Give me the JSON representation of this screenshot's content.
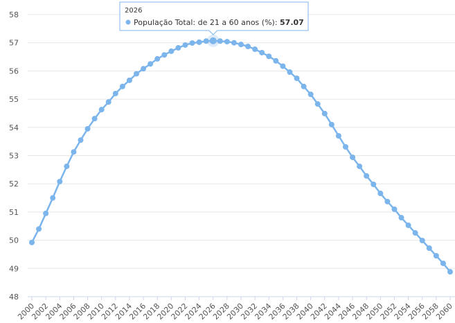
{
  "chart_data": {
    "type": "line",
    "x": [
      2000,
      2001,
      2002,
      2003,
      2004,
      2005,
      2006,
      2007,
      2008,
      2009,
      2010,
      2011,
      2012,
      2013,
      2014,
      2015,
      2016,
      2017,
      2018,
      2019,
      2020,
      2021,
      2022,
      2023,
      2024,
      2025,
      2026,
      2027,
      2028,
      2029,
      2030,
      2031,
      2032,
      2033,
      2034,
      2035,
      2036,
      2037,
      2038,
      2039,
      2040,
      2041,
      2042,
      2043,
      2044,
      2045,
      2046,
      2047,
      2048,
      2049,
      2050,
      2051,
      2052,
      2053,
      2054,
      2055,
      2056,
      2057,
      2058,
      2059,
      2060
    ],
    "series": [
      {
        "name": "População Total: de 21 a 60 anos (%)",
        "color": "#7cb5ec",
        "values": [
          49.92,
          50.4,
          50.95,
          51.5,
          52.08,
          52.62,
          53.13,
          53.55,
          53.95,
          54.31,
          54.63,
          54.9,
          55.2,
          55.45,
          55.67,
          55.9,
          56.08,
          56.25,
          56.43,
          56.57,
          56.7,
          56.82,
          56.92,
          56.99,
          57.02,
          57.06,
          57.07,
          57.06,
          57.04,
          57.0,
          56.94,
          56.87,
          56.77,
          56.65,
          56.52,
          56.36,
          56.17,
          55.96,
          55.74,
          55.45,
          55.17,
          54.83,
          54.49,
          54.1,
          53.7,
          53.31,
          52.94,
          52.62,
          52.28,
          51.98,
          51.66,
          51.37,
          51.1,
          50.8,
          50.53,
          50.26,
          49.99,
          49.72,
          49.45,
          49.18,
          48.88
        ]
      }
    ],
    "xlim": [
      2000,
      2060
    ],
    "xticks": [
      2000,
      2002,
      2004,
      2006,
      2008,
      2010,
      2012,
      2014,
      2016,
      2018,
      2020,
      2022,
      2024,
      2026,
      2028,
      2030,
      2032,
      2034,
      2036,
      2038,
      2040,
      2042,
      2044,
      2046,
      2048,
      2050,
      2052,
      2054,
      2056,
      2058,
      2060
    ],
    "ylim": [
      48,
      58
    ],
    "yticks": [
      48,
      49,
      50,
      51,
      52,
      53,
      54,
      55,
      56,
      57,
      58
    ],
    "grid": true,
    "tooltip_index": 26
  }
}
